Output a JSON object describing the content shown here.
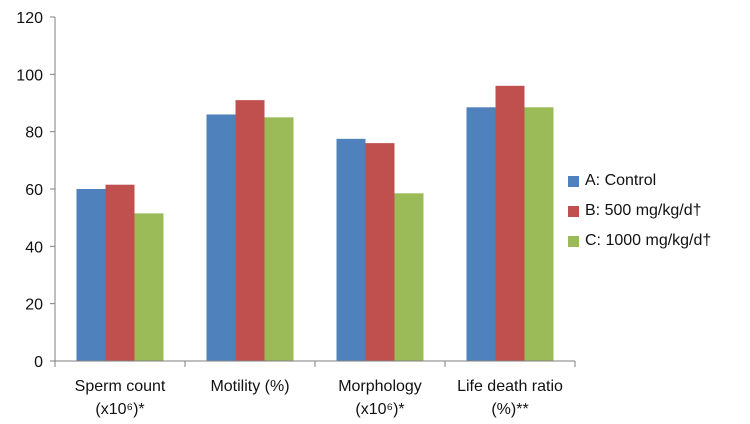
{
  "chart_data": {
    "type": "bar",
    "categories": [
      [
        "Sperm count",
        "(x10⁶)*"
      ],
      [
        "Motility (%)"
      ],
      [
        "Morphology",
        "(x10⁶)*"
      ],
      [
        "Life death ratio",
        "(%)**"
      ]
    ],
    "series": [
      {
        "name": "A: Control",
        "color": "#4f81bd",
        "values": [
          60,
          86,
          77.5,
          88.5
        ]
      },
      {
        "name": "B: 500 mg/kg/d†",
        "color": "#c0504d",
        "values": [
          61.5,
          91,
          76,
          96
        ]
      },
      {
        "name": "C: 1000 mg/kg/d†",
        "color": "#9bbb59",
        "values": [
          51.5,
          85,
          58.5,
          88.5
        ]
      }
    ],
    "ylim": [
      0,
      120
    ],
    "yticks": [
      0,
      20,
      40,
      60,
      80,
      100,
      120
    ],
    "grid": false,
    "legend_position": "right",
    "title": "",
    "xlabel": "",
    "ylabel": ""
  }
}
